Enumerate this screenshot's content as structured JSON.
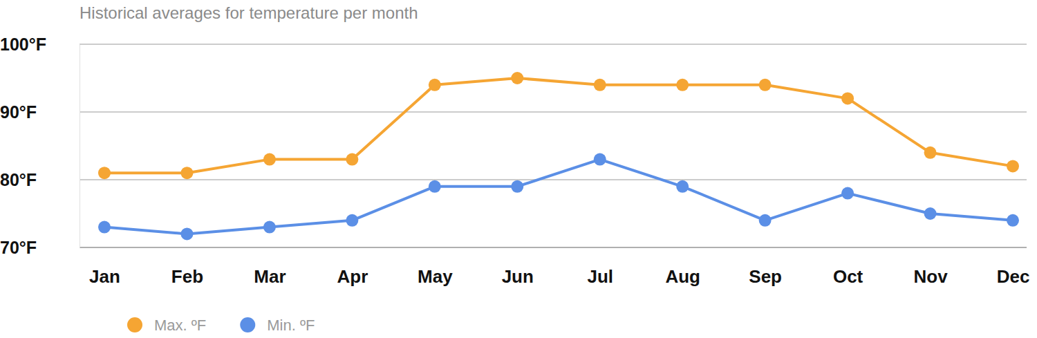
{
  "chart_data": {
    "type": "line",
    "title": "Historical averages for temperature per month",
    "categories": [
      "Jan",
      "Feb",
      "Mar",
      "Apr",
      "May",
      "Jun",
      "Jul",
      "Aug",
      "Sep",
      "Oct",
      "Nov",
      "Dec"
    ],
    "series": [
      {
        "name": "Max. ºF",
        "color": "#f5a533",
        "marker": "circle",
        "values": [
          81,
          81,
          83,
          83,
          94,
          95,
          94,
          94,
          94,
          92,
          84,
          82
        ]
      },
      {
        "name": "Min. ºF",
        "color": "#5b8fe6",
        "marker": "circle",
        "values": [
          73,
          72,
          73,
          74,
          79,
          79,
          83,
          79,
          74,
          78,
          75,
          74
        ]
      }
    ],
    "ylim": [
      70,
      100
    ],
    "yticks": [
      {
        "value": 70,
        "label": "70°F"
      },
      {
        "value": 80,
        "label": "80°F"
      },
      {
        "value": 90,
        "label": "90°F"
      },
      {
        "value": 100,
        "label": "100°F"
      }
    ],
    "grid": true,
    "legend": "bottom-left"
  }
}
